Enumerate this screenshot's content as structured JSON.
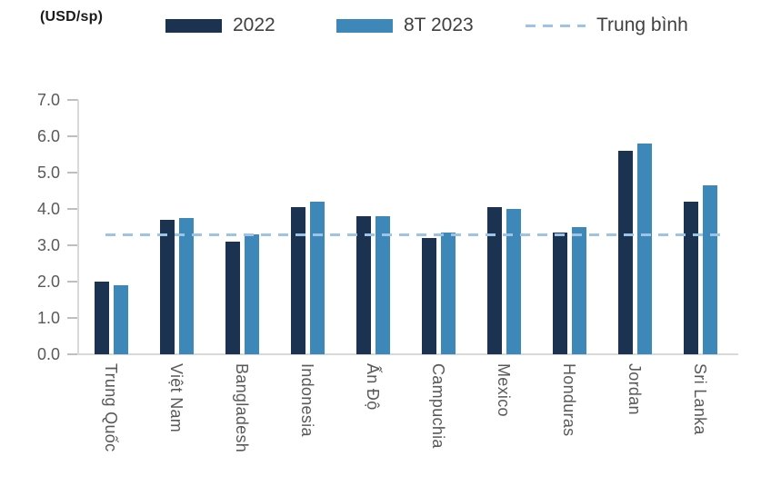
{
  "header": {
    "unit_label": "(USD/sp)"
  },
  "legend": [
    {
      "label": "2022",
      "swatch": "bar",
      "color": "#1B3350"
    },
    {
      "label": "8T 2023",
      "swatch": "bar",
      "color": "#3E87B9"
    },
    {
      "label": "Trung bình",
      "swatch": "dashed-line",
      "color": "#9DC3E6"
    }
  ],
  "chart_data": {
    "type": "bar",
    "title": "",
    "unit": "(USD/sp)",
    "categories": [
      "Trung Quốc",
      "Việt Nam",
      "Bangladesh",
      "Indonesia",
      "Ấn Độ",
      "Campuchia",
      "Mexico",
      "Honduras",
      "Jordan",
      "Sri Lanka"
    ],
    "series": [
      {
        "name": "2022",
        "color": "#1B3350",
        "values": [
          2.0,
          3.7,
          3.1,
          4.05,
          3.8,
          3.2,
          4.05,
          3.35,
          5.6,
          4.2
        ]
      },
      {
        "name": "8T 2023",
        "color": "#3E87B9",
        "values": [
          1.9,
          3.75,
          3.3,
          4.2,
          3.8,
          3.35,
          4.0,
          3.5,
          5.8,
          4.65
        ]
      }
    ],
    "average_line": {
      "label": "Trung bình",
      "value": 3.3,
      "color": "#9DC3E6",
      "style": "dashed"
    },
    "ylim": [
      0.0,
      7.0
    ],
    "ytick_step": 1.0,
    "yticks": [
      "0.0",
      "1.0",
      "2.0",
      "3.0",
      "4.0",
      "5.0",
      "6.0",
      "7.0"
    ],
    "xlabel": "",
    "ylabel": "",
    "grid": false,
    "legend_position": "top"
  },
  "colors": {
    "axis_line": "#D9D9D9",
    "tick_mark": "#BFBFBF",
    "tick_text": "#595959",
    "legend_text": "#404040",
    "background": "#FFFFFF"
  }
}
